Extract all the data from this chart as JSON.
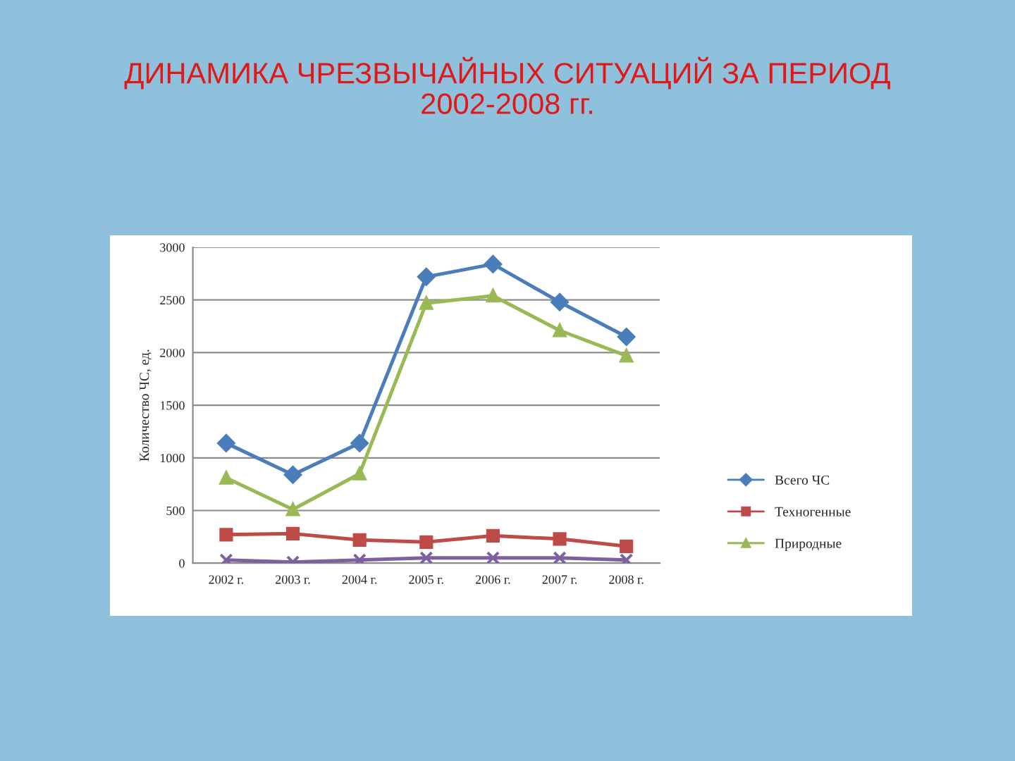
{
  "chart_data": {
    "type": "line",
    "title": "ДИНАМИКА ЧРЕЗВЫЧАЙНЫХ СИТУАЦИЙ ЗА ПЕРИОД\n2002-2008 гг.",
    "ylabel": "Количество ЧС, ед.",
    "categories": [
      "2002 г.",
      "2003 г.",
      "2004 г.",
      "2005 г.",
      "2006 г.",
      "2007 г.",
      "2008 г."
    ],
    "series": [
      {
        "name": "Всего ЧС",
        "color": "#4a7ebb",
        "marker": "diamond",
        "values": [
          1140,
          840,
          1140,
          2720,
          2840,
          2480,
          2150
        ]
      },
      {
        "name": "Техногенные",
        "color": "#be4b48",
        "marker": "square",
        "values": [
          270,
          280,
          220,
          200,
          260,
          230,
          160
        ]
      },
      {
        "name": "Природные",
        "color": "#98b954",
        "marker": "triangle",
        "values": [
          810,
          510,
          850,
          2470,
          2540,
          2210,
          1970
        ]
      },
      {
        "color": "#7d60a0",
        "marker": "cross",
        "values": [
          30,
          10,
          30,
          50,
          50,
          50,
          30
        ]
      }
    ],
    "ylim": [
      0,
      3000
    ],
    "yticks": [
      0,
      500,
      1000,
      1500,
      2000,
      2500,
      3000
    ],
    "grid": "y",
    "legend": "bottom right"
  }
}
